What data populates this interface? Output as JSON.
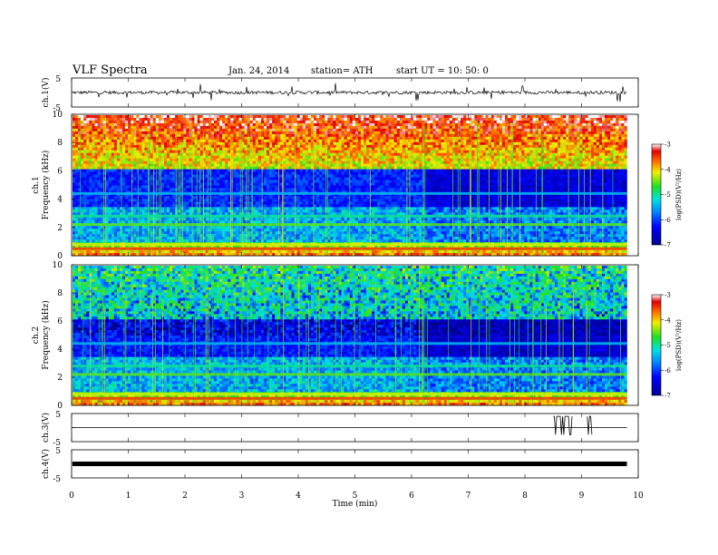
{
  "header": {
    "title": "VLF  Spectra",
    "date": "Jan. 24, 2014",
    "station": "station= ATH",
    "start": "start  UT =    10: 50: 0"
  },
  "chart_data": [
    {
      "type": "line",
      "panel": "ch1-waveform",
      "ylabel": "ch.1(V)",
      "yticks": [
        "5",
        "-5"
      ],
      "ylim": [
        -5,
        5
      ],
      "description_values": "noisy near-zero trace",
      "baseline": 0
    },
    {
      "type": "heatmap",
      "panel": "ch1-spectrogram",
      "ylabel_line1": "ch.1",
      "ylabel_line2": "Frequency  (kHz)",
      "yticks": [
        "0",
        "2",
        "4",
        "6",
        "8",
        "10"
      ],
      "ylim": [
        0,
        10
      ],
      "colorbar": {
        "label": "log(PSD)(V²/Hz)",
        "ticks": [
          "-3",
          "-4",
          "-5",
          "-6",
          "-7"
        ],
        "range": [
          -7,
          -3
        ]
      },
      "change_time_min": 6.2
    },
    {
      "type": "heatmap",
      "panel": "ch2-spectrogram",
      "ylabel_line1": "ch.2",
      "ylabel_line2": "Frequency  (kHz)",
      "yticks": [
        "0",
        "2",
        "4",
        "6",
        "8",
        "10"
      ],
      "ylim": [
        0,
        10
      ],
      "colorbar": {
        "label": "log(PSD)(V²/Hz)",
        "ticks": [
          "-3",
          "-4",
          "-5",
          "-6",
          "-7"
        ],
        "range": [
          -7,
          -3
        ]
      },
      "change_time_min": 6.2
    },
    {
      "type": "line",
      "panel": "ch3-waveform",
      "ylabel": "ch.3(V)",
      "yticks": [
        "5",
        "-5"
      ],
      "ylim": [
        -5,
        5
      ],
      "baseline": 0,
      "bursts_min": [
        [
          8.5,
          8.85
        ],
        [
          9.1,
          9.2
        ]
      ]
    },
    {
      "type": "line",
      "panel": "ch4-waveform",
      "ylabel": "ch.4(V)",
      "yticks": [
        "5",
        "-5"
      ],
      "ylim": [
        -5,
        5
      ],
      "baseline": 0
    }
  ],
  "xaxis": {
    "label": "Time  (min)",
    "ticks": [
      "0",
      "1",
      "2",
      "3",
      "4",
      "5",
      "6",
      "7",
      "8",
      "9",
      "10"
    ],
    "xlim": [
      0,
      10
    ],
    "data_end_min": 9.8
  }
}
